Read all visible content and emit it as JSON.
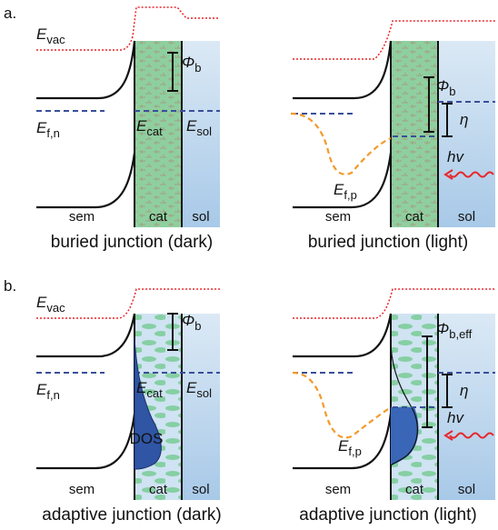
{
  "sections": [
    {
      "label": "a.",
      "panels": [
        {
          "caption": "buried junction (dark)",
          "regions": [
            "sem",
            "cat",
            "sol"
          ],
          "e_vac": {
            "main": "E",
            "sub": "vac"
          },
          "barrier": {
            "main": "Φ",
            "sub": "b"
          },
          "fermi_sem": {
            "main": "E",
            "sub": "f,n"
          },
          "e_cat": {
            "main": "E",
            "sub": "cat"
          },
          "e_sol": {
            "main": "E",
            "sub": "sol"
          }
        },
        {
          "caption": "buried junction (light)",
          "regions": [
            "sem",
            "cat",
            "sol"
          ],
          "barrier": {
            "main": "Φ",
            "sub": "b"
          },
          "overpotential": "η",
          "photon": "hv",
          "fermi_hole": {
            "main": "E",
            "sub": "f,p"
          }
        }
      ]
    },
    {
      "label": "b.",
      "panels": [
        {
          "caption": "adaptive junction (dark)",
          "regions": [
            "sem",
            "cat",
            "sol"
          ],
          "e_vac": {
            "main": "E",
            "sub": "vac"
          },
          "barrier": {
            "main": "Φ",
            "sub": "b"
          },
          "fermi_sem": {
            "main": "E",
            "sub": "f,n"
          },
          "e_cat": {
            "main": "E",
            "sub": "cat"
          },
          "e_sol": {
            "main": "E",
            "sub": "sol"
          },
          "dos": "DOS"
        },
        {
          "caption": "adaptive junction (light)",
          "regions": [
            "sem",
            "cat",
            "sol"
          ],
          "barrier": {
            "main": "Φ",
            "sub": "b,eff"
          },
          "overpotential": "η",
          "photon": "hv",
          "fermi_hole": {
            "main": "E",
            "sub": "f,p"
          }
        }
      ]
    }
  ]
}
